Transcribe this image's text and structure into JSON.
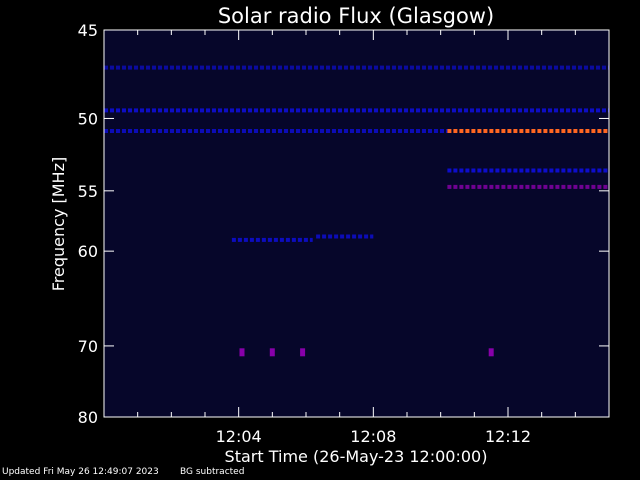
{
  "chart_data": {
    "type": "heatmap",
    "title": "Solar radio Flux (Glasgow)",
    "xlabel": "Start Time (26-May-23 12:00:00)",
    "ylabel": "Frequency [MHz]",
    "x_start": "12:00:00",
    "xlim_minutes": [
      0,
      15
    ],
    "x_ticks": [
      {
        "minute": 4,
        "label": "12:04"
      },
      {
        "minute": 8,
        "label": "12:08"
      },
      {
        "minute": 12,
        "label": "12:12"
      }
    ],
    "ylim": [
      45,
      80
    ],
    "y_ticks": [
      {
        "value": 45,
        "label": "45"
      },
      {
        "value": 50,
        "label": "50"
      },
      {
        "value": 55,
        "label": "55"
      },
      {
        "value": 60,
        "label": "60"
      },
      {
        "value": 70,
        "label": "70"
      },
      {
        "value": 80,
        "label": "80"
      }
    ],
    "colors": {
      "background": "#000000",
      "plot_background": "#06062a",
      "axes": "#ffffff",
      "low_signal": "#1010ff",
      "mid_signal": "#8800aa",
      "high_signal": "#ff6622"
    },
    "features": [
      {
        "type": "band",
        "freq": 47,
        "t_start": 0,
        "t_end": 15,
        "intensity": 0.25
      },
      {
        "type": "band",
        "freq": 49.5,
        "t_start": 0,
        "t_end": 15,
        "intensity": 0.55
      },
      {
        "type": "band",
        "freq": 50.8,
        "t_start": 0,
        "t_end": 10.2,
        "intensity": 0.45
      },
      {
        "type": "band",
        "freq": 50.8,
        "t_start": 10.2,
        "t_end": 15,
        "intensity": 1.0
      },
      {
        "type": "band",
        "freq": 53.5,
        "t_start": 10.2,
        "t_end": 15,
        "intensity": 0.6
      },
      {
        "type": "band",
        "freq": 54.7,
        "t_start": 10.2,
        "t_end": 15,
        "intensity": 0.7
      },
      {
        "type": "band",
        "freq": 59,
        "t_start": 3.8,
        "t_end": 6.2,
        "intensity": 0.5
      },
      {
        "type": "band",
        "freq": 58.7,
        "t_start": 6.3,
        "t_end": 8.0,
        "intensity": 0.45
      },
      {
        "type": "spot",
        "freq": 70.8,
        "t": 4.1,
        "intensity": 0.75
      },
      {
        "type": "spot",
        "freq": 70.8,
        "t": 5.0,
        "intensity": 0.8
      },
      {
        "type": "spot",
        "freq": 70.8,
        "t": 5.9,
        "intensity": 0.8
      },
      {
        "type": "spot",
        "freq": 70.8,
        "t": 11.5,
        "intensity": 0.75
      }
    ]
  },
  "footer": {
    "updated": "Updated Fri May 26 12:49:07 2023",
    "note": "BG subtracted"
  }
}
